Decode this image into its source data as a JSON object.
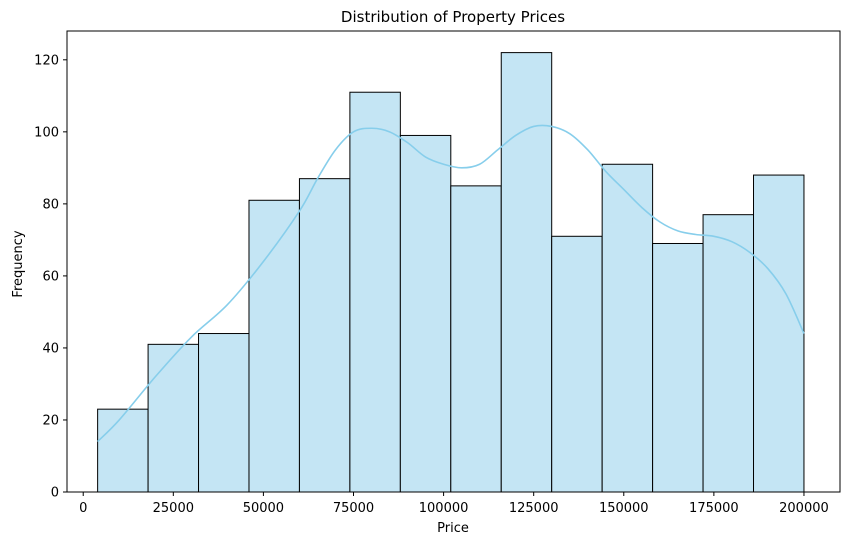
{
  "chart_data": {
    "type": "bar",
    "title": "Distribution of Property Prices",
    "xlabel": "Price",
    "ylabel": "Frequency",
    "bin_edges": [
      4000,
      18000,
      32000,
      46000,
      60000,
      74000,
      88000,
      102000,
      116000,
      130000,
      144000,
      158000,
      172000,
      186000,
      200000
    ],
    "values": [
      23,
      41,
      44,
      81,
      87,
      111,
      99,
      85,
      122,
      71,
      91,
      69,
      77,
      88
    ],
    "xlim": [
      -4500,
      210000
    ],
    "ylim": [
      0,
      128
    ],
    "x_ticks": [
      0,
      25000,
      50000,
      75000,
      100000,
      125000,
      150000,
      175000,
      200000
    ],
    "y_ticks": [
      0,
      20,
      40,
      60,
      80,
      100,
      120
    ],
    "kde": {
      "x": [
        4000,
        10000,
        20000,
        30000,
        40000,
        50000,
        60000,
        65000,
        70000,
        75000,
        80000,
        85000,
        90000,
        95000,
        100000,
        105000,
        110000,
        115000,
        120000,
        125000,
        130000,
        135000,
        140000,
        145000,
        150000,
        155000,
        160000,
        165000,
        170000,
        175000,
        180000,
        185000,
        190000,
        195000,
        200000
      ],
      "y": [
        14,
        20,
        32,
        43,
        52,
        64,
        78,
        87,
        95,
        100,
        101,
        100,
        97,
        93,
        91,
        90,
        91,
        95,
        99,
        101.5,
        101.5,
        99.5,
        95,
        89,
        84,
        79,
        75,
        72.5,
        71.5,
        71,
        69.5,
        66.5,
        62,
        55,
        44
      ]
    },
    "bar_fill": "#c4e5f4",
    "bar_edge": "#000000",
    "kde_color": "#87ceeb",
    "grid": false,
    "legend": "none"
  }
}
